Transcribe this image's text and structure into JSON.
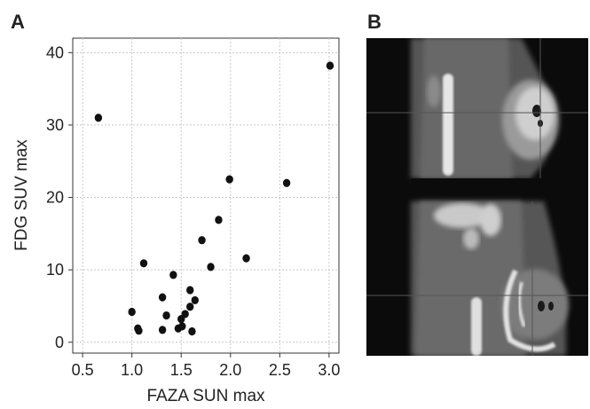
{
  "panels": {
    "a_label": "A",
    "b_label": "B"
  },
  "chart_data": {
    "type": "scatter",
    "xlabel": "FAZA SUN max",
    "ylabel": "FDG SUV max",
    "xlim": [
      0.4,
      3.1
    ],
    "ylim": [
      -1.5,
      42
    ],
    "xticks": [
      0.5,
      1.0,
      1.5,
      2.0,
      2.5,
      3.0
    ],
    "xtick_labels": [
      "0.5",
      "1.0",
      "1.5",
      "2.0",
      "2.5",
      "3.0"
    ],
    "yticks": [
      0,
      10,
      20,
      30,
      40
    ],
    "ytick_labels": [
      "0",
      "10",
      "20",
      "30",
      "40"
    ],
    "grid": true,
    "point_color": "#111111",
    "points": [
      {
        "x": 0.66,
        "y": 31.0
      },
      {
        "x": 1.0,
        "y": 4.2
      },
      {
        "x": 1.06,
        "y": 1.9
      },
      {
        "x": 1.07,
        "y": 1.6
      },
      {
        "x": 1.12,
        "y": 10.9
      },
      {
        "x": 1.31,
        "y": 6.2
      },
      {
        "x": 1.31,
        "y": 1.7
      },
      {
        "x": 1.35,
        "y": 3.7
      },
      {
        "x": 1.42,
        "y": 9.3
      },
      {
        "x": 1.47,
        "y": 1.9
      },
      {
        "x": 1.5,
        "y": 3.2
      },
      {
        "x": 1.51,
        "y": 2.2
      },
      {
        "x": 1.54,
        "y": 3.9
      },
      {
        "x": 1.59,
        "y": 7.2
      },
      {
        "x": 1.59,
        "y": 4.9
      },
      {
        "x": 1.61,
        "y": 1.5
      },
      {
        "x": 1.64,
        "y": 5.8
      },
      {
        "x": 1.71,
        "y": 14.1
      },
      {
        "x": 1.8,
        "y": 10.4
      },
      {
        "x": 1.88,
        "y": 16.9
      },
      {
        "x": 1.99,
        "y": 22.5
      },
      {
        "x": 2.16,
        "y": 11.6
      },
      {
        "x": 2.57,
        "y": 22.0
      },
      {
        "x": 3.01,
        "y": 38.2
      }
    ]
  }
}
